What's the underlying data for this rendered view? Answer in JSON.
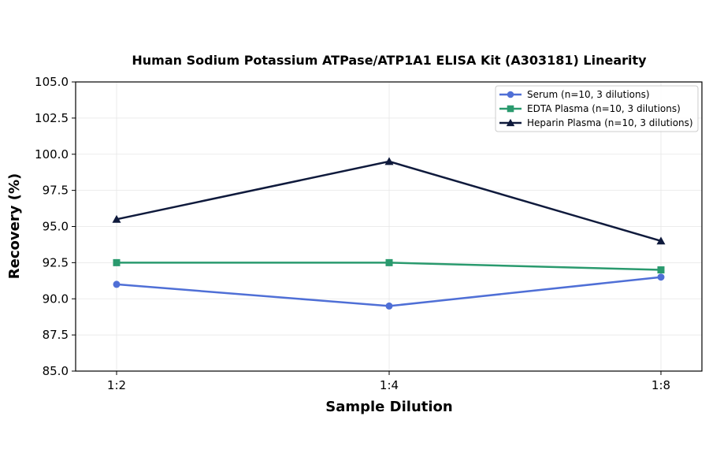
{
  "chart_data": {
    "type": "line",
    "title": "Human Sodium Potassium ATPase/ATP1A1 ELISA Kit (A303181) Linearity",
    "xlabel": "Sample Dilution",
    "ylabel": "Recovery (%)",
    "categories": [
      "1:2",
      "1:4",
      "1:8"
    ],
    "ylim": [
      85.0,
      105.0
    ],
    "yticks": [
      "85.0",
      "87.5",
      "90.0",
      "92.5",
      "95.0",
      "97.5",
      "100.0",
      "102.5",
      "105.0"
    ],
    "grid": true,
    "legend_position": "top-right",
    "series": [
      {
        "name": "Serum (n=10, 3 dilutions)",
        "values": [
          91.0,
          89.5,
          91.5
        ],
        "color": "#4f6fd6",
        "marker": "circle"
      },
      {
        "name": "EDTA Plasma (n=10, 3 dilutions)",
        "values": [
          92.5,
          92.5,
          92.0
        ],
        "color": "#2a9a6e",
        "marker": "square"
      },
      {
        "name": "Heparin Plasma (n=10, 3 dilutions)",
        "values": [
          95.5,
          99.5,
          94.0
        ],
        "color": "#0f1a3c",
        "marker": "triangle"
      }
    ]
  }
}
